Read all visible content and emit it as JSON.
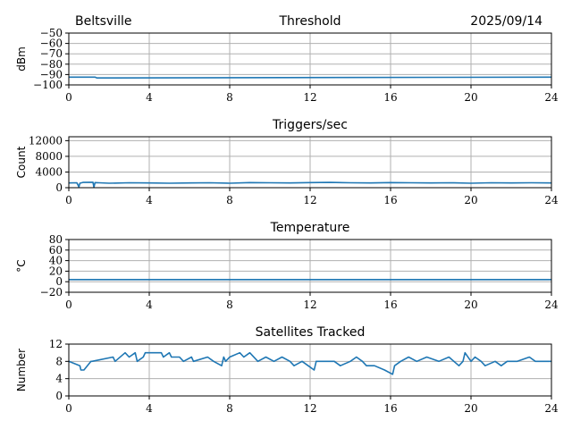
{
  "header": {
    "location": "Beltsville",
    "date": "2025/09/14"
  },
  "chart_data": [
    {
      "type": "line",
      "title": "Threshold",
      "ylabel": "dBm",
      "xlim": [
        0,
        24
      ],
      "ylim": [
        -100,
        -50
      ],
      "xticks": [
        0,
        4,
        8,
        12,
        16,
        20,
        24
      ],
      "yticks": [
        -100,
        -90,
        -80,
        -70,
        -60,
        -50
      ],
      "ytick_labels": [
        "−100",
        "−90",
        "−80",
        "−70",
        "−60",
        "−50"
      ],
      "grid": true,
      "series": [
        {
          "x": [
            0,
            1.3,
            1.4,
            24
          ],
          "y": [
            -92.5,
            -92.5,
            -93.3,
            -92.5
          ]
        }
      ]
    },
    {
      "type": "line",
      "title": "Triggers/sec",
      "ylabel": "Count",
      "xlim": [
        0,
        24
      ],
      "ylim": [
        0,
        13000
      ],
      "xticks": [
        0,
        4,
        8,
        12,
        16,
        20,
        24
      ],
      "yticks": [
        0,
        4000,
        8000,
        12000
      ],
      "ytick_labels": [
        "0",
        "4000",
        "8000",
        "12000"
      ],
      "grid": true,
      "series": [
        {
          "x": [
            0,
            0.4,
            0.5,
            0.55,
            0.7,
            1.2,
            1.25,
            1.3,
            1.5,
            2,
            3,
            4,
            5,
            6,
            7,
            8,
            9,
            10,
            11,
            12,
            13,
            14,
            15,
            16,
            17,
            18,
            19,
            20,
            21,
            22,
            23,
            24
          ],
          "y": [
            1200,
            1250,
            200,
            1150,
            1350,
            1400,
            100,
            1300,
            1250,
            1150,
            1250,
            1200,
            1150,
            1200,
            1250,
            1150,
            1300,
            1250,
            1200,
            1300,
            1350,
            1250,
            1200,
            1300,
            1250,
            1200,
            1250,
            1150,
            1250,
            1200,
            1250,
            1200
          ]
        }
      ]
    },
    {
      "type": "line",
      "title": "Temperature",
      "ylabel": "°C",
      "xlim": [
        0,
        24
      ],
      "ylim": [
        -20,
        80
      ],
      "xticks": [
        0,
        4,
        8,
        12,
        16,
        20,
        24
      ],
      "yticks": [
        -20,
        0,
        20,
        40,
        60,
        80
      ],
      "ytick_labels": [
        "−20",
        "0",
        "20",
        "40",
        "60",
        "80"
      ],
      "grid": true,
      "series": [
        {
          "x": [
            0,
            24
          ],
          "y": [
            4,
            4
          ]
        }
      ]
    },
    {
      "type": "line",
      "title": "Satellites Tracked",
      "ylabel": "Number",
      "xlim": [
        0,
        24
      ],
      "ylim": [
        0,
        12
      ],
      "xticks": [
        0,
        4,
        8,
        12,
        16,
        20,
        24
      ],
      "yticks": [
        0,
        4,
        8,
        12
      ],
      "ytick_labels": [
        "0",
        "4",
        "8",
        "12"
      ],
      "grid": true,
      "series": [
        {
          "x": [
            0,
            0.55,
            0.6,
            0.75,
            1.1,
            1.15,
            2.2,
            2.3,
            2.8,
            3.0,
            3.3,
            3.4,
            3.7,
            3.8,
            4.6,
            4.7,
            5.0,
            5.1,
            5.5,
            5.7,
            6.1,
            6.2,
            6.9,
            7.2,
            7.6,
            7.7,
            7.8,
            8.0,
            8.5,
            8.7,
            9.0,
            9.4,
            9.8,
            10.2,
            10.6,
            11.0,
            11.2,
            11.6,
            11.9,
            12.2,
            12.3,
            13.2,
            13.5,
            14.0,
            14.3,
            14.6,
            14.8,
            15.2,
            15.7,
            16.1,
            16.2,
            16.5,
            16.9,
            17.3,
            17.8,
            18.4,
            18.9,
            19.4,
            19.6,
            19.7,
            20.0,
            20.2,
            20.5,
            20.7,
            21.2,
            21.5,
            21.8,
            22.3,
            22.9,
            23.2,
            23.4,
            24
          ],
          "y": [
            8,
            7,
            6,
            6,
            8,
            8,
            9,
            8,
            10,
            9,
            10,
            8,
            9,
            10,
            10,
            9,
            10,
            9,
            9,
            8,
            9,
            8,
            9,
            8,
            7,
            9,
            8,
            9,
            10,
            9,
            10,
            8,
            9,
            8,
            9,
            8,
            7,
            8,
            7,
            6,
            8,
            8,
            7,
            8,
            9,
            8,
            7,
            7,
            6,
            5,
            7,
            8,
            9,
            8,
            9,
            8,
            9,
            7,
            8,
            10,
            8,
            9,
            8,
            7,
            8,
            7,
            8,
            8,
            9,
            8,
            8,
            8
          ]
        }
      ]
    }
  ]
}
